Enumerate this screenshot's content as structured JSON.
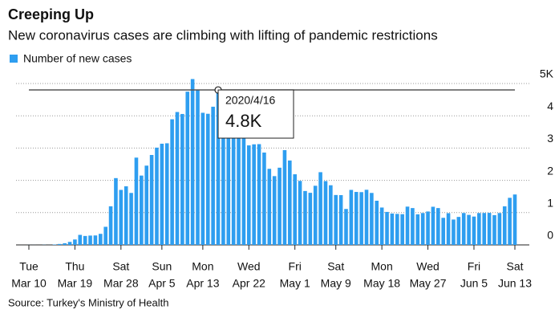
{
  "chart_data": {
    "type": "bar",
    "title": "Creeping Up",
    "subtitle": "New coronavirus cases are climbing with lifting of pandemic restrictions",
    "source": "Source: Turkey's Ministry of Health",
    "categories": [
      "Mar 10",
      null,
      null,
      null,
      null,
      null,
      null,
      null,
      null,
      "Mar 19",
      null,
      null,
      null,
      null,
      null,
      null,
      null,
      null,
      "Mar 28",
      null,
      null,
      null,
      null,
      null,
      null,
      null,
      "Apr 5",
      null,
      null,
      null,
      null,
      null,
      null,
      null,
      "Apr 13",
      null,
      null,
      null,
      null,
      null,
      null,
      null,
      null,
      "Apr 22",
      null,
      null,
      null,
      null,
      null,
      null,
      null,
      null,
      "May 1",
      null,
      null,
      null,
      null,
      null,
      null,
      null,
      "May 9",
      null,
      null,
      null,
      null,
      null,
      null,
      null,
      null,
      "May 18",
      null,
      null,
      null,
      null,
      null,
      null,
      null,
      null,
      "May 27",
      null,
      null,
      null,
      null,
      null,
      null,
      null,
      null,
      "Jun 5",
      null,
      null,
      null,
      null,
      null,
      null,
      null,
      "Jun 13"
    ],
    "weekdays": [
      "Tue",
      null,
      null,
      null,
      null,
      null,
      null,
      null,
      null,
      "Thu",
      null,
      null,
      null,
      null,
      null,
      null,
      null,
      null,
      "Sat",
      null,
      null,
      null,
      null,
      null,
      null,
      null,
      "Sun",
      null,
      null,
      null,
      null,
      null,
      null,
      null,
      "Mon",
      null,
      null,
      null,
      null,
      null,
      null,
      null,
      null,
      "Wed",
      null,
      null,
      null,
      null,
      null,
      null,
      null,
      null,
      "Fri",
      null,
      null,
      null,
      null,
      null,
      null,
      null,
      "Sat",
      null,
      null,
      null,
      null,
      null,
      null,
      null,
      null,
      "Mon",
      null,
      null,
      null,
      null,
      null,
      null,
      null,
      null,
      "Wed",
      null,
      null,
      null,
      null,
      null,
      null,
      null,
      null,
      "Fri",
      null,
      null,
      null,
      null,
      null,
      null,
      null,
      "Sat"
    ],
    "series": [
      {
        "name": "Number of new cases",
        "color": "#2e9ef0",
        "values": [
          0.001,
          0.001,
          0,
          0.004,
          0.001,
          0.012,
          0.029,
          0.051,
          0.093,
          0.168,
          0.311,
          0.277,
          0.289,
          0.293,
          0.343,
          0.561,
          1.196,
          2.069,
          1.704,
          1.815,
          1.61,
          2.704,
          2.148,
          2.456,
          2.786,
          3.013,
          3.135,
          3.148,
          3.892,
          4.117,
          4.056,
          4.747,
          5.138,
          4.789,
          4.093,
          4.062,
          4.281,
          4.801,
          3.783,
          3.977,
          3.923,
          4.674,
          4.611,
          3.083,
          3.116,
          3.122,
          2.861,
          2.357,
          2.131,
          2.392,
          2.936,
          2.615,
          2.188,
          1.983,
          1.67,
          1.614,
          1.832,
          2.253,
          1.977,
          1.848,
          1.546,
          1.542,
          1.114,
          1.704,
          1.641,
          1.635,
          1.708,
          1.61,
          1.368,
          1.158,
          1.022,
          0.972,
          0.961,
          0.952,
          1.186,
          1.141,
          0.948,
          0.987,
          1.035,
          1.182,
          1.141,
          0.839,
          0.983,
          0.786,
          0.867,
          0.988,
          0.93,
          0.878,
          0.987,
          0.989,
          0.993,
          0.922,
          0.987,
          1.195,
          1.459,
          1.562
        ]
      }
    ],
    "ylim": [
      0,
      5
    ],
    "yticks": [
      0,
      1,
      2,
      3,
      4,
      {
        "value": 5,
        "label": "5K"
      }
    ],
    "grid": true,
    "annotation": {
      "date": "2020/4/16",
      "value": 4.8,
      "label": "4.8K"
    }
  }
}
